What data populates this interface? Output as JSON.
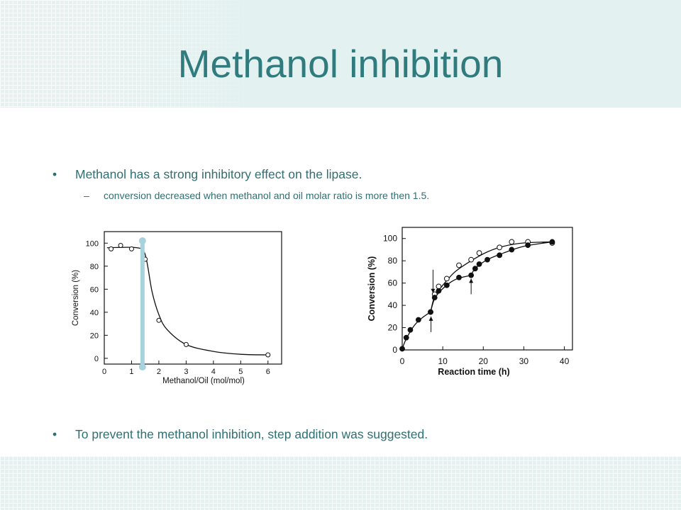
{
  "slide": {
    "title": "Methanol inhibition",
    "bullets": [
      {
        "marker": "•",
        "text": "Methanol has a strong inhibitory effect on the lipase."
      },
      {
        "marker": "–",
        "text": "conversion decreased when methanol and oil molar ratio is more then 1.5."
      },
      {
        "marker": "•",
        "text": "To prevent the methanol inhibition, step addition was suggested."
      }
    ],
    "colors": {
      "title": "#2f7b7e",
      "band": "#e3f2f1",
      "highlight_bar": "#a9d3dc",
      "text": "#2f6f72"
    }
  },
  "chart_data": [
    {
      "type": "line",
      "xlabel": "Methanol/Oil (mol/mol)",
      "ylabel": "Conversion (%)",
      "xlim": [
        0,
        6.5
      ],
      "ylim": [
        -5,
        110
      ],
      "xticks": [
        0,
        1,
        2,
        3,
        4,
        5,
        6
      ],
      "yticks": [
        0,
        20,
        40,
        60,
        80,
        100
      ],
      "grid": false,
      "series": [
        {
          "marker": "open-circle",
          "points": [
            [
              0.25,
              95
            ],
            [
              0.6,
              98
            ],
            [
              1.0,
              95
            ],
            [
              1.5,
              86
            ],
            [
              2.0,
              33
            ],
            [
              3.0,
              12
            ],
            [
              6.0,
              3
            ]
          ]
        }
      ],
      "fit_curve": [
        [
          0.1,
          96
        ],
        [
          1.2,
          96
        ],
        [
          1.5,
          90
        ],
        [
          1.75,
          58
        ],
        [
          2.0,
          38
        ],
        [
          2.3,
          25
        ],
        [
          3.0,
          12
        ],
        [
          4.0,
          6
        ],
        [
          5.0,
          3.5
        ],
        [
          6.0,
          3
        ]
      ],
      "highlight_x": 1.4
    },
    {
      "type": "line",
      "xlabel": "Reaction time (h)",
      "ylabel": "Conversion (%)",
      "xlim": [
        0,
        42
      ],
      "ylim": [
        0,
        110
      ],
      "xticks": [
        0,
        10,
        20,
        30,
        40
      ],
      "yticks": [
        0,
        20,
        40,
        60,
        80,
        100
      ],
      "grid": false,
      "series": [
        {
          "marker": "open-circle",
          "points": [
            [
              7,
              34
            ],
            [
              8,
              50
            ],
            [
              9,
              57
            ],
            [
              11,
              64
            ],
            [
              14,
              76
            ],
            [
              17,
              81
            ],
            [
              19,
              87
            ],
            [
              24,
              92
            ],
            [
              27,
              97
            ],
            [
              31,
              97
            ],
            [
              37,
              96
            ]
          ]
        },
        {
          "marker": "filled-circle",
          "points": [
            [
              0,
              1
            ],
            [
              1,
              11
            ],
            [
              2,
              18
            ],
            [
              4,
              27
            ],
            [
              7,
              34
            ],
            [
              8,
              47
            ],
            [
              9,
              53
            ],
            [
              11,
              58
            ],
            [
              14,
              65
            ],
            [
              17,
              67
            ],
            [
              18,
              73
            ],
            [
              19,
              77
            ],
            [
              21,
              81
            ],
            [
              24,
              85
            ],
            [
              27,
              90
            ],
            [
              31,
              94
            ],
            [
              37,
              97
            ]
          ]
        }
      ],
      "arrows_x": [
        7,
        17
      ]
    }
  ]
}
